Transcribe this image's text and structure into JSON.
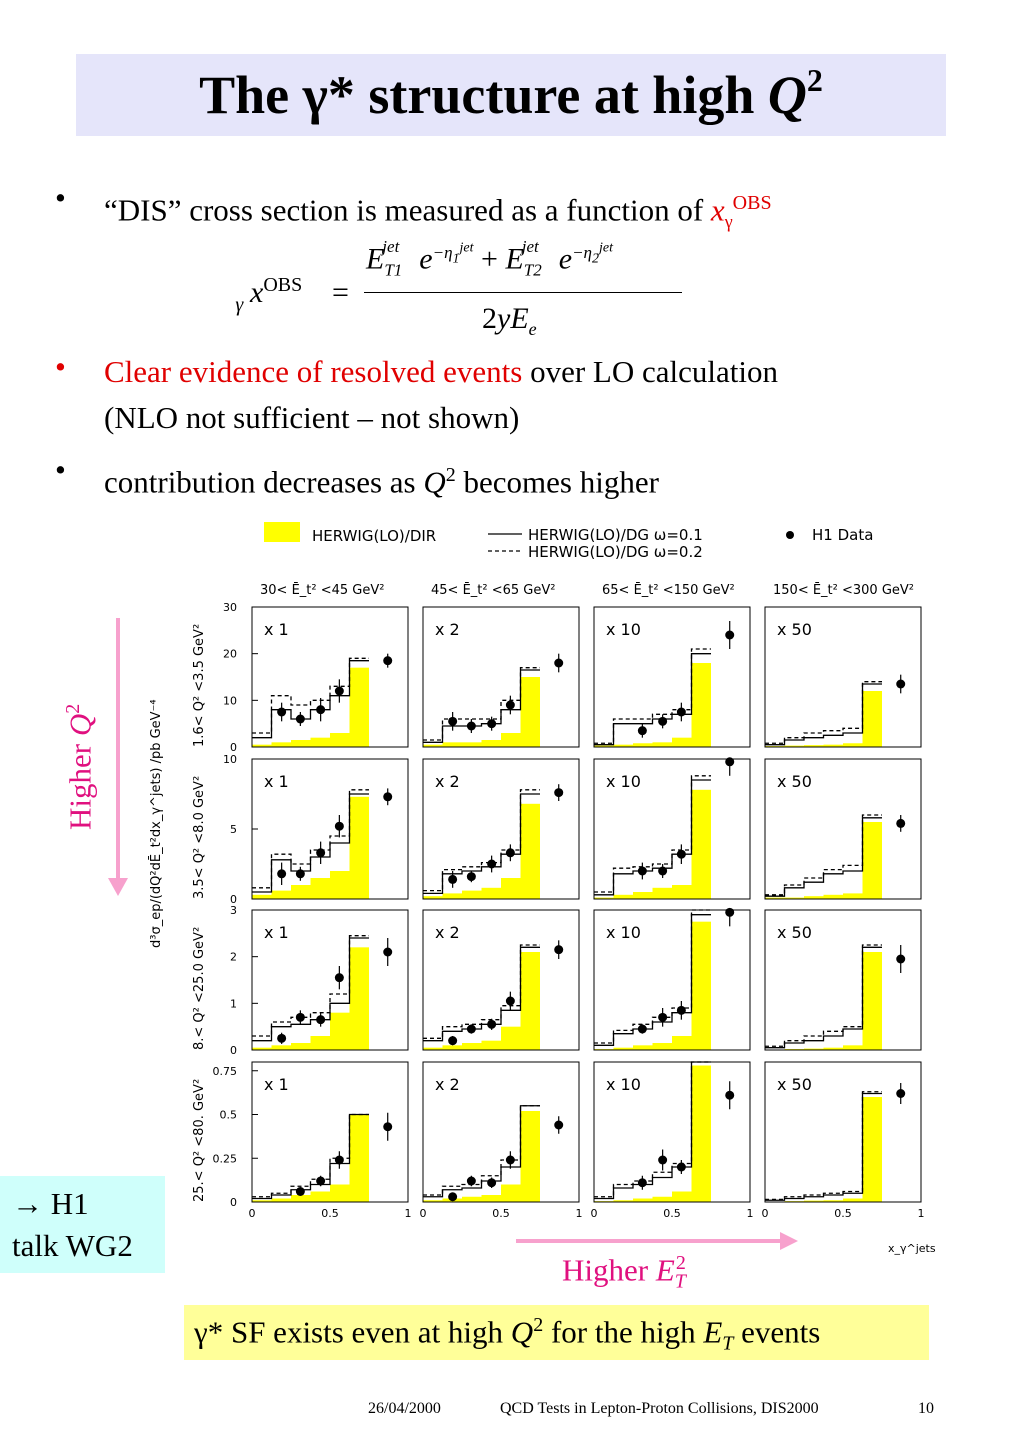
{
  "slide": {
    "title_pre": "The γ* structure at high ",
    "title_var": "Q",
    "title_sup": "2",
    "bullets": [
      {
        "pre": "“DIS” cross section is measured as a function of ",
        "var": "x",
        "sub": "γ",
        "sup": "OBS"
      },
      {
        "red": "Clear evidence of resolved events",
        "rest": " over LO calculation",
        "line2": "(NLO not sufficient – not shown)"
      },
      {
        "pre": "contribution decreases as ",
        "var": "Q",
        "sup": "2",
        "post": " becomes higher"
      }
    ],
    "formula": {
      "lhs": "x",
      "lhs_sub": "γ",
      "lhs_sup": "OBS",
      "eq": "=",
      "num": "E_T1^jet e^(−η1^jet) + E_T2^jet e^(−η2^jet)",
      "den": "2yE_e"
    },
    "side_box": {
      "line1": "→ H1",
      "line2": "talk WG2"
    },
    "higher_q_label": {
      "text": "Higher ",
      "var": "Q",
      "sup": "2"
    },
    "higher_et_label": {
      "text": "Higher ",
      "var": "E",
      "sub": "T",
      "sup": "2"
    },
    "conclusion": {
      "p1": "γ* SF exists even at high ",
      "v1": "Q",
      "s1": "2",
      "p2": " for the high ",
      "v2": "E",
      "sub2": "T",
      "p3": " events"
    },
    "footer": {
      "date": "26/04/2000",
      "event": "QCD Tests in Lepton-Proton Collisions, DIS2000",
      "page": "10"
    }
  },
  "colors": {
    "yellow_fill": "#ffff00",
    "pink_arrow": "#f7a1cd",
    "pink_text": "#e0107f",
    "red_text": "#e00000"
  },
  "chart_data": {
    "type": "histogram-grid",
    "legend": [
      {
        "name": "HERWIG(LO)/DIR",
        "style": "yellow-fill"
      },
      {
        "name": "HERWIG(LO)/DG ω=0.1",
        "style": "solid-line"
      },
      {
        "name": "HERWIG(LO)/DG ω=0.2",
        "style": "dashed-line"
      },
      {
        "name": "H1 Data",
        "style": "marker"
      }
    ],
    "col_headers": [
      "30< Ē_t² <45 GeV²",
      "45< Ē_t² <65 GeV²",
      "65< Ē_t² <150 GeV²",
      "150< Ē_t² <300 GeV²"
    ],
    "row_labels": [
      "1.6< Q² <3.5 GeV²",
      "3.5< Q² <8.0 GeV²",
      "8.< Q² <25.0 GeV²",
      "25.< Q² <80. GeV²"
    ],
    "y_axis_label": "d³σ_ep/(dQ²dĒ_t²dx_γ^jets)   /pb GeV⁻⁴",
    "x_axis_label": "x_γ^jets",
    "scale_factors": [
      "x 1",
      "x 2",
      "x 10",
      "x 50"
    ],
    "bin_edges": [
      0,
      0.125,
      0.25,
      0.375,
      0.5,
      0.625,
      0.75,
      1.0
    ],
    "data_x": [
      0.19,
      0.31,
      0.44,
      0.56,
      0.87
    ],
    "x_ticks": [
      "0",
      "0.5",
      "1"
    ],
    "rows": [
      {
        "ylim": [
          0,
          30
        ],
        "yticks": [
          0,
          10,
          20,
          30
        ],
        "ytick_labels": [
          "0",
          "10",
          "20",
          "30"
        ],
        "panels": [
          {
            "dir": [
              0.5,
              1,
              1.5,
              2,
              3,
              17
            ],
            "dg01": [
              2,
              8,
              6,
              8,
              11,
              18.5
            ],
            "dg02": [
              3,
              11,
              9,
              10,
              13,
              19
            ],
            "data": [
              7.5,
              6,
              8,
              12,
              18.5
            ],
            "err": [
              2,
              1.5,
              2.5,
              2.5,
              1.5
            ]
          },
          {
            "dir": [
              0.5,
              1,
              1,
              1.5,
              3,
              15
            ],
            "dg01": [
              1,
              4.5,
              4.5,
              5,
              8,
              16.5
            ],
            "dg02": [
              1.5,
              6,
              6,
              6,
              10,
              17
            ],
            "data": [
              5.5,
              4.5,
              5,
              9,
              18
            ],
            "err": [
              2,
              1.5,
              1.5,
              2,
              2
            ]
          },
          {
            "dir": [
              0.3,
              0.5,
              0.8,
              1,
              2,
              18
            ],
            "dg01": [
              0.5,
              5,
              5,
              6,
              7,
              20
            ],
            "dg02": [
              0.8,
              6,
              6,
              7,
              8,
              21
            ],
            "data": [
              3.5,
              5.5,
              7.5,
              24
            ],
            "dx": [
              0.31,
              0.44,
              0.56,
              0.87
            ],
            "err": [
              1.5,
              1.5,
              2,
              3
            ]
          },
          {
            "dir": [
              0.2,
              0.3,
              0.4,
              0.5,
              0.8,
              12
            ],
            "dg01": [
              0.5,
              1.5,
              2,
              2.5,
              3,
              13.5
            ],
            "dg02": [
              0.8,
              2,
              3,
              3.5,
              4,
              14
            ],
            "data": [
              13.5
            ],
            "dx": [
              0.87
            ],
            "err": [
              2
            ]
          }
        ]
      },
      {
        "ylim": [
          0,
          10
        ],
        "yticks": [
          0,
          5,
          10
        ],
        "ytick_labels": [
          "0",
          "5",
          "10"
        ],
        "panels": [
          {
            "dir": [
              0.3,
              0.6,
              1,
              1.5,
              2,
              7.3
            ],
            "dg01": [
              0.5,
              2.8,
              2,
              3,
              4,
              7.5
            ],
            "dg02": [
              0.8,
              3.2,
              2.5,
              3.5,
              4.5,
              7.8
            ],
            "data": [
              1.8,
              1.8,
              3.3,
              5.2,
              7.3
            ],
            "err": [
              0.8,
              0.5,
              0.8,
              0.8,
              0.6
            ]
          },
          {
            "dir": [
              0.2,
              0.4,
              0.6,
              0.8,
              1.5,
              6.8
            ],
            "dg01": [
              0.4,
              1.8,
              2,
              2.3,
              3.2,
              7.5
            ],
            "dg02": [
              0.6,
              2.1,
              2.3,
              2.6,
              3.5,
              7.8
            ],
            "data": [
              1.4,
              1.6,
              2.5,
              3.3,
              7.6
            ],
            "err": [
              0.6,
              0.4,
              0.6,
              0.6,
              0.6
            ]
          },
          {
            "dir": [
              0.1,
              0.3,
              0.5,
              0.8,
              1,
              7.8
            ],
            "dg01": [
              0.3,
              1.8,
              2,
              2.2,
              3.2,
              8.5
            ],
            "dg02": [
              0.5,
              2.2,
              2.3,
              2.5,
              3.5,
              8.8
            ],
            "data": [
              2,
              2,
              3.2,
              9.8
            ],
            "dx": [
              0.31,
              0.44,
              0.56,
              0.87
            ],
            "err": [
              0.6,
              0.5,
              0.7,
              1
            ]
          },
          {
            "dir": [
              0.1,
              0.1,
              0.2,
              0.3,
              0.4,
              5.5
            ],
            "dg01": [
              0.2,
              0.8,
              1.2,
              1.8,
              2,
              5.8
            ],
            "dg02": [
              0.3,
              1,
              1.5,
              2.1,
              2.4,
              6
            ],
            "data": [
              5.4
            ],
            "dx": [
              0.87
            ],
            "err": [
              0.6
            ]
          }
        ]
      },
      {
        "ylim": [
          0,
          3
        ],
        "yticks": [
          0,
          1,
          2,
          3
        ],
        "ytick_labels": [
          "0",
          "1",
          "2",
          "3"
        ],
        "panels": [
          {
            "dir": [
              0.05,
              0.1,
              0.15,
              0.3,
              0.8,
              2.2
            ],
            "dg01": [
              0.2,
              0.5,
              0.55,
              0.65,
              1,
              2.4
            ],
            "dg02": [
              0.3,
              0.6,
              0.7,
              0.8,
              1.2,
              2.45
            ],
            "data": [
              0.25,
              0.7,
              0.65,
              1.55,
              2.1
            ],
            "err": [
              0.12,
              0.15,
              0.15,
              0.25,
              0.3
            ]
          },
          {
            "dir": [
              0.05,
              0.1,
              0.15,
              0.2,
              0.5,
              2.1
            ],
            "dg01": [
              0.2,
              0.4,
              0.45,
              0.55,
              0.85,
              2.2
            ],
            "dg02": [
              0.25,
              0.5,
              0.55,
              0.65,
              0.95,
              2.25
            ],
            "data": [
              0.2,
              0.45,
              0.55,
              1.05,
              2.15
            ],
            "err": [
              0.1,
              0.1,
              0.12,
              0.2,
              0.2
            ]
          },
          {
            "dir": [
              0.02,
              0.05,
              0.1,
              0.15,
              0.3,
              2.75
            ],
            "dg01": [
              0.1,
              0.35,
              0.45,
              0.6,
              0.8,
              2.9
            ],
            "dg02": [
              0.15,
              0.42,
              0.55,
              0.7,
              0.9,
              3
            ],
            "data": [
              0.45,
              0.7,
              0.85,
              2.95
            ],
            "dx": [
              0.31,
              0.44,
              0.56,
              0.87
            ],
            "err": [
              0.1,
              0.2,
              0.2,
              0.3
            ]
          },
          {
            "dir": [
              0.01,
              0.02,
              0.03,
              0.05,
              0.1,
              2.1
            ],
            "dg01": [
              0.05,
              0.15,
              0.2,
              0.3,
              0.45,
              2.2
            ],
            "dg02": [
              0.08,
              0.2,
              0.3,
              0.4,
              0.5,
              2.25
            ],
            "data": [
              1.95
            ],
            "dx": [
              0.87
            ],
            "err": [
              0.3
            ]
          }
        ]
      },
      {
        "ylim": [
          0,
          0.8
        ],
        "yticks": [
          0,
          0.25,
          0.5,
          0.75
        ],
        "ytick_labels": [
          "0",
          "0.25",
          "0.5",
          "0.75"
        ],
        "panels": [
          {
            "dir": [
              0.01,
              0.02,
              0.04,
              0.06,
              0.1,
              0.5
            ],
            "dg01": [
              0.02,
              0.04,
              0.07,
              0.1,
              0.22,
              0.5
            ],
            "dg02": [
              0.03,
              0.05,
              0.09,
              0.13,
              0.25,
              0.5
            ],
            "data": [
              0.06,
              0.12,
              0.24,
              0.43
            ],
            "dx": [
              0.31,
              0.44,
              0.56,
              0.87
            ],
            "err": [
              0.02,
              0.03,
              0.05,
              0.08
            ]
          },
          {
            "dir": [
              0.01,
              0.02,
              0.03,
              0.04,
              0.1,
              0.52
            ],
            "dg01": [
              0.03,
              0.07,
              0.08,
              0.12,
              0.2,
              0.55
            ],
            "dg02": [
              0.04,
              0.09,
              0.1,
              0.15,
              0.24,
              0.55
            ],
            "data": [
              0.03,
              0.12,
              0.11,
              0.24,
              0.44
            ],
            "err": [
              0.02,
              0.03,
              0.03,
              0.05,
              0.05
            ]
          },
          {
            "dir": [
              0.005,
              0.01,
              0.02,
              0.03,
              0.06,
              0.78
            ],
            "dg01": [
              0.02,
              0.08,
              0.1,
              0.14,
              0.2,
              0.8
            ],
            "dg02": [
              0.03,
              0.1,
              0.12,
              0.17,
              0.22,
              0.8
            ],
            "data": [
              0.11,
              0.24,
              0.2,
              0.61
            ],
            "dx": [
              0.31,
              0.44,
              0.56,
              0.87
            ],
            "err": [
              0.04,
              0.06,
              0.04,
              0.08
            ]
          },
          {
            "dir": [
              0.002,
              0.005,
              0.008,
              0.01,
              0.02,
              0.6
            ],
            "dg01": [
              0.01,
              0.02,
              0.03,
              0.04,
              0.05,
              0.62
            ],
            "dg02": [
              0.015,
              0.03,
              0.04,
              0.05,
              0.06,
              0.63
            ],
            "data": [
              0.62
            ],
            "dx": [
              0.87
            ],
            "err": [
              0.06
            ]
          }
        ]
      }
    ]
  }
}
